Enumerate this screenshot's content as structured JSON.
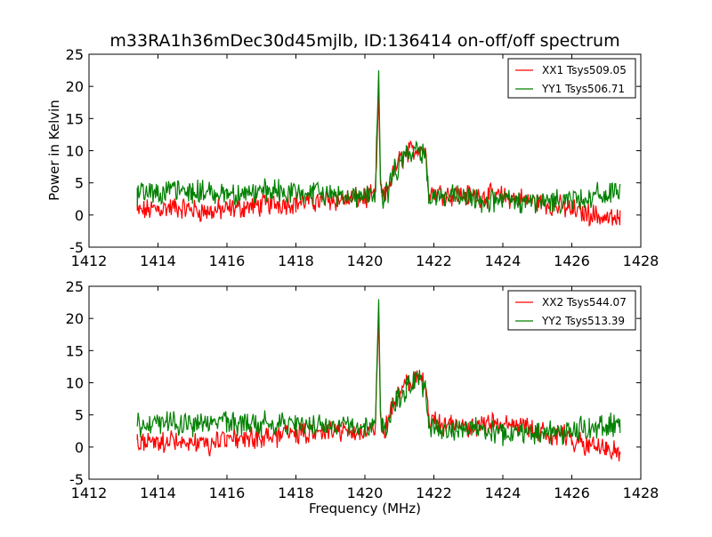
{
  "figure": {
    "title": "m33RA1h36mDec30d45mjlb, ID:136414 on-off/off spectrum"
  },
  "chart_data": [
    {
      "type": "line",
      "title": "m33RA1h36mDec30d45mjlb, ID:136414 on-off/off spectrum",
      "xlabel": "",
      "ylabel": "Power in Kelvin",
      "xlim": [
        1412,
        1428
      ],
      "ylim": [
        -5,
        25
      ],
      "xticks": [
        1412,
        1414,
        1416,
        1418,
        1420,
        1422,
        1424,
        1426,
        1428
      ],
      "yticks": [
        -5,
        0,
        5,
        10,
        15,
        20,
        25
      ],
      "grid": false,
      "legend": "top-right",
      "series": [
        {
          "name": "XX1 Tsys509.05",
          "color": "#ff0000",
          "x": [
            1413.4,
            1414.0,
            1414.5,
            1415.0,
            1415.5,
            1416.0,
            1416.5,
            1417.0,
            1417.5,
            1418.0,
            1418.5,
            1419.0,
            1419.5,
            1420.0,
            1420.3,
            1420.4,
            1420.45,
            1420.5,
            1420.6,
            1420.8,
            1421.0,
            1421.2,
            1421.4,
            1421.6,
            1421.75,
            1421.85,
            1422.0,
            1422.5,
            1423.0,
            1423.5,
            1424.0,
            1424.5,
            1425.0,
            1425.5,
            1426.0,
            1426.5,
            1427.0,
            1427.4
          ],
          "y": [
            0.5,
            1.0,
            1.2,
            0.8,
            0.5,
            0.9,
            1.2,
            1.5,
            1.8,
            2.0,
            2.1,
            2.3,
            2.5,
            2.7,
            2.8,
            19.0,
            5.0,
            2.5,
            3.0,
            6.5,
            8.5,
            9.5,
            10.0,
            10.5,
            10.0,
            4.0,
            3.5,
            3.2,
            3.0,
            3.0,
            2.8,
            2.5,
            2.0,
            1.5,
            0.8,
            0.2,
            -0.5,
            -0.8
          ]
        },
        {
          "name": "YY1 Tsys506.71",
          "color": "#008000",
          "x": [
            1413.4,
            1414.0,
            1414.5,
            1415.0,
            1415.5,
            1416.0,
            1416.5,
            1417.0,
            1417.5,
            1418.0,
            1418.5,
            1419.0,
            1419.5,
            1420.0,
            1420.3,
            1420.4,
            1420.45,
            1420.5,
            1420.6,
            1420.8,
            1421.0,
            1421.2,
            1421.4,
            1421.6,
            1421.75,
            1421.85,
            1422.0,
            1422.5,
            1423.0,
            1423.5,
            1424.0,
            1424.5,
            1425.0,
            1425.5,
            1426.0,
            1426.5,
            1427.0,
            1427.4
          ],
          "y": [
            3.5,
            3.8,
            3.7,
            3.6,
            3.5,
            3.5,
            3.4,
            3.5,
            3.6,
            3.4,
            3.3,
            3.2,
            3.1,
            3.0,
            3.0,
            22.5,
            6.0,
            2.5,
            3.0,
            6.0,
            8.0,
            9.2,
            9.8,
            10.0,
            9.5,
            3.5,
            3.0,
            2.8,
            2.5,
            2.3,
            2.2,
            2.0,
            2.0,
            2.2,
            2.5,
            2.8,
            3.2,
            3.6
          ]
        }
      ]
    },
    {
      "type": "line",
      "title": "",
      "xlabel": "Frequency (MHz)",
      "ylabel": "",
      "xlim": [
        1412,
        1428
      ],
      "ylim": [
        -5,
        25
      ],
      "xticks": [
        1412,
        1414,
        1416,
        1418,
        1420,
        1422,
        1424,
        1426,
        1428
      ],
      "yticks": [
        -5,
        0,
        5,
        10,
        15,
        20,
        25
      ],
      "grid": false,
      "legend": "top-right",
      "series": [
        {
          "name": "XX2 Tsys544.07",
          "color": "#ff0000",
          "x": [
            1413.4,
            1414.0,
            1414.5,
            1415.0,
            1415.5,
            1416.0,
            1416.5,
            1417.0,
            1417.5,
            1418.0,
            1418.5,
            1419.0,
            1419.5,
            1420.0,
            1420.3,
            1420.4,
            1420.45,
            1420.5,
            1420.6,
            1420.8,
            1421.0,
            1421.2,
            1421.4,
            1421.6,
            1421.75,
            1421.85,
            1422.0,
            1422.5,
            1423.0,
            1423.5,
            1424.0,
            1424.5,
            1425.0,
            1425.5,
            1426.0,
            1426.5,
            1427.0,
            1427.4
          ],
          "y": [
            0.5,
            1.0,
            1.0,
            0.8,
            0.6,
            1.0,
            1.3,
            1.6,
            1.9,
            2.1,
            2.2,
            2.4,
            2.6,
            2.8,
            2.8,
            20.5,
            5.0,
            2.5,
            3.0,
            6.5,
            8.5,
            9.8,
            10.5,
            11.0,
            10.0,
            4.0,
            3.5,
            3.5,
            3.3,
            3.3,
            3.2,
            3.0,
            2.5,
            2.0,
            1.2,
            0.5,
            -0.3,
            -0.8
          ]
        },
        {
          "name": "YY2 Tsys513.39",
          "color": "#008000",
          "x": [
            1413.4,
            1414.0,
            1414.5,
            1415.0,
            1415.5,
            1416.0,
            1416.5,
            1417.0,
            1417.5,
            1418.0,
            1418.5,
            1419.0,
            1419.5,
            1420.0,
            1420.3,
            1420.4,
            1420.45,
            1420.5,
            1420.6,
            1420.8,
            1421.0,
            1421.2,
            1421.4,
            1421.6,
            1421.75,
            1421.85,
            1422.0,
            1422.5,
            1423.0,
            1423.5,
            1424.0,
            1424.5,
            1425.0,
            1425.5,
            1426.0,
            1426.5,
            1427.0,
            1427.4
          ],
          "y": [
            3.5,
            3.8,
            3.8,
            3.7,
            3.6,
            3.5,
            3.5,
            3.6,
            3.6,
            3.5,
            3.4,
            3.3,
            3.2,
            3.1,
            3.0,
            23.0,
            6.0,
            2.5,
            3.0,
            6.0,
            8.0,
            9.2,
            10.0,
            10.2,
            9.5,
            3.5,
            3.0,
            2.8,
            2.6,
            2.4,
            2.3,
            2.2,
            2.1,
            2.3,
            2.6,
            2.9,
            3.3,
            3.7
          ]
        }
      ]
    }
  ]
}
